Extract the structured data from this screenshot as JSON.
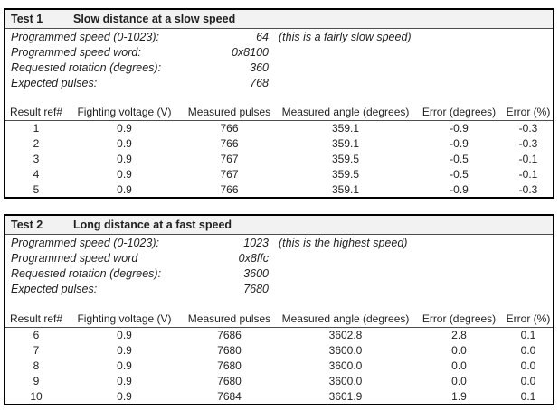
{
  "colors": {
    "panel_border": "#000000",
    "title_bg": "#f2f2f2",
    "rule": "#4d4d4d",
    "text": "#1f1f1f"
  },
  "tests": [
    {
      "id": "Test 1",
      "title": "Slow distance at a slow speed",
      "params": [
        {
          "label": "Programmed speed (0-1023):",
          "value": "64",
          "note": "(this is a fairly slow speed)"
        },
        {
          "label": "Programmed speed word:",
          "value": "0x8100",
          "note": ""
        },
        {
          "label": "Requested rotation (degrees):",
          "value": "360",
          "note": ""
        },
        {
          "label": "Expected pulses:",
          "value": "768",
          "note": ""
        }
      ],
      "table": {
        "headers": [
          "Result ref#",
          "Fighting voltage (V)",
          "Measured pulses",
          "Measured angle (degrees)",
          "Error (degrees)",
          "Error (%)"
        ],
        "rows": [
          [
            "1",
            "0.9",
            "766",
            "359.1",
            "-0.9",
            "-0.3"
          ],
          [
            "2",
            "0.9",
            "766",
            "359.1",
            "-0.9",
            "-0.3"
          ],
          [
            "3",
            "0.9",
            "767",
            "359.5",
            "-0.5",
            "-0.1"
          ],
          [
            "4",
            "0.9",
            "767",
            "359.5",
            "-0.5",
            "-0.1"
          ],
          [
            "5",
            "0.9",
            "766",
            "359.1",
            "-0.9",
            "-0.3"
          ]
        ]
      }
    },
    {
      "id": "Test 2",
      "title": "Long distance at a fast speed",
      "params": [
        {
          "label": "Programmed speed (0-1023):",
          "value": "1023",
          "note": "(this is the highest speed)"
        },
        {
          "label": "Programmed speed word",
          "value": "0x8ffc",
          "note": ""
        },
        {
          "label": "Requested rotation (degrees):",
          "value": "3600",
          "note": ""
        },
        {
          "label": "Expected pulses:",
          "value": "7680",
          "note": ""
        }
      ],
      "table": {
        "headers": [
          "Result ref#",
          "Fighting voltage (V)",
          "Measured pulses",
          "Measured angle (degrees)",
          "Error (degrees)",
          "Error (%)"
        ],
        "rows": [
          [
            "6",
            "0.9",
            "7686",
            "3602.8",
            "2.8",
            "0.1"
          ],
          [
            "7",
            "0.9",
            "7680",
            "3600.0",
            "0.0",
            "0.0"
          ],
          [
            "8",
            "0.9",
            "7680",
            "3600.0",
            "0.0",
            "0.0"
          ],
          [
            "9",
            "0.9",
            "7680",
            "3600.0",
            "0.0",
            "0.0"
          ],
          [
            "10",
            "0.9",
            "7684",
            "3601.9",
            "1.9",
            "0.1"
          ]
        ]
      }
    }
  ]
}
